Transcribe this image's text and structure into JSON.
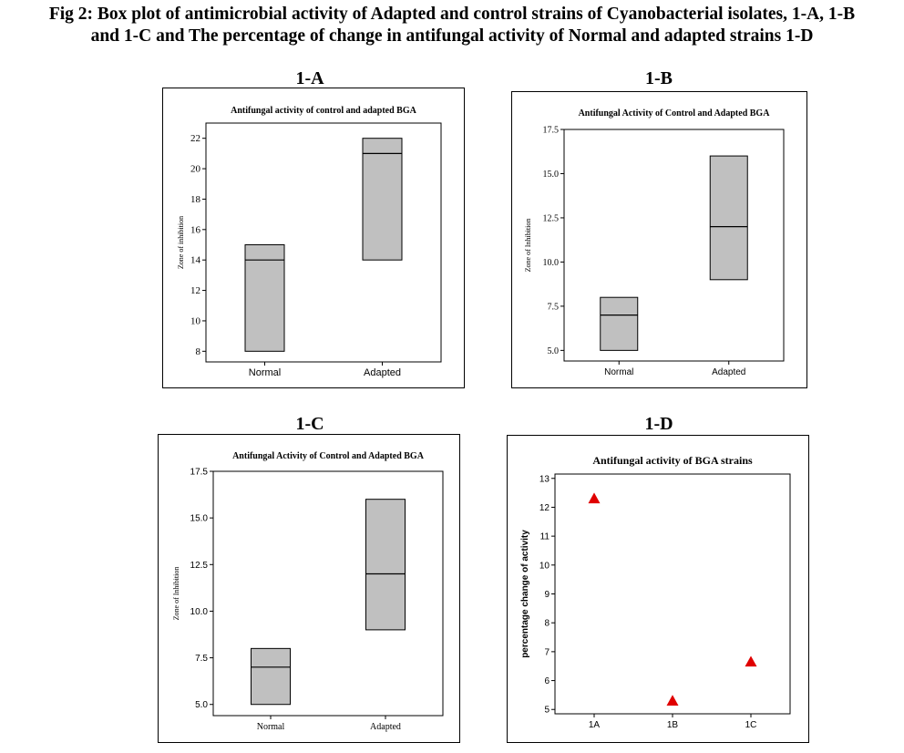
{
  "figure": {
    "title_line1": "Fig 2: Box plot of antimicrobial activity of Adapted and control strains of Cyanobacterial isolates, 1-A, 1-B",
    "title_line2": "and 1-C and The percentage of change in antifungal activity of Normal and adapted strains 1-D"
  },
  "panels": {
    "a": {
      "label": "1-A"
    },
    "b": {
      "label": "1-B"
    },
    "c": {
      "label": "1-C"
    },
    "d": {
      "label": "1-D"
    }
  },
  "chart_data": [
    {
      "id": "1-A",
      "type": "box",
      "title": "Antifungal activity of control and adapted BGA",
      "xlabel": "",
      "ylabel": "Zone of inhibition",
      "ylim": [
        7.3,
        23.0
      ],
      "yticks": [
        8,
        10,
        12,
        14,
        16,
        18,
        20,
        22
      ],
      "ytick_labels": [
        "8",
        "10",
        "12",
        "14",
        "16",
        "18",
        "20",
        "22"
      ],
      "categories": [
        "Normal",
        "Adapted"
      ],
      "boxes": [
        {
          "name": "Normal",
          "q1": 8,
          "median": 14,
          "q3": 15
        },
        {
          "name": "Adapted",
          "q1": 14,
          "median": 21,
          "q3": 22
        }
      ],
      "grid": false
    },
    {
      "id": "1-B",
      "type": "box",
      "title": "Antifungal Activity of Control and Adapted BGA",
      "xlabel": "",
      "ylabel": "Zone of Inhibition",
      "ylim": [
        4.4,
        17.5
      ],
      "yticks": [
        5.0,
        7.5,
        10.0,
        12.5,
        15.0,
        17.5
      ],
      "ytick_labels": [
        "5.0",
        "7.5",
        "10.0",
        "12.5",
        "15.0",
        "17.5"
      ],
      "categories": [
        "Normal",
        "Adapted"
      ],
      "boxes": [
        {
          "name": "Normal",
          "q1": 5,
          "median": 7,
          "q3": 8
        },
        {
          "name": "Adapted",
          "q1": 9,
          "median": 12,
          "q3": 16
        }
      ],
      "grid": false
    },
    {
      "id": "1-C",
      "type": "box",
      "title": "Antifungal Activity of Control and Adapted BGA",
      "xlabel": "",
      "ylabel": "Zone of Inhibition",
      "ylim": [
        4.4,
        17.5
      ],
      "yticks": [
        5.0,
        7.5,
        10.0,
        12.5,
        15.0,
        17.5
      ],
      "ytick_labels": [
        "5.0",
        "7.5",
        "10.0",
        "12.5",
        "15.0",
        "17.5"
      ],
      "categories": [
        "Normal",
        "Adapted"
      ],
      "boxes": [
        {
          "name": "Normal",
          "q1": 5,
          "median": 7,
          "q3": 8
        },
        {
          "name": "Adapted",
          "q1": 9,
          "median": 12,
          "q3": 16
        }
      ],
      "grid": false
    },
    {
      "id": "1-D",
      "type": "scatter",
      "title": "Antifungal activity of BGA strains",
      "xlabel": "",
      "ylabel": "percentage change of activity",
      "ylim": [
        4.85,
        13.15
      ],
      "yticks": [
        5,
        6,
        7,
        8,
        9,
        10,
        11,
        12,
        13
      ],
      "ytick_labels": [
        "5",
        "6",
        "7",
        "8",
        "9",
        "10",
        "11",
        "12",
        "13"
      ],
      "categories": [
        "1A",
        "1B",
        "1C"
      ],
      "values": [
        12.3,
        5.3,
        6.65
      ],
      "marker": "triangle",
      "marker_color": "#e00000",
      "grid": false
    }
  ],
  "colors": {
    "box_fill": "#c0c0c0",
    "line": "#000000",
    "marker": "#e00000"
  }
}
